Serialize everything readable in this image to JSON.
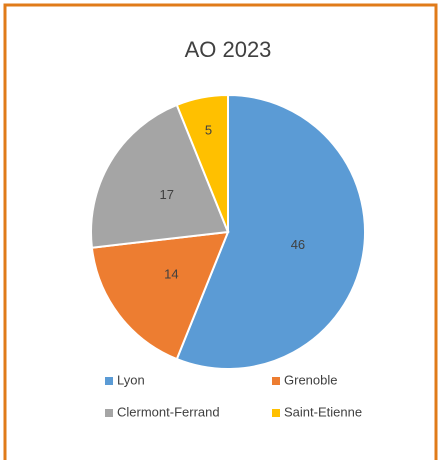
{
  "chart_data": {
    "type": "pie",
    "title": "AO 2023",
    "categories": [
      "Lyon",
      "Grenoble",
      "Clermont-Ferrand",
      "Saint-Etienne"
    ],
    "values": [
      46,
      14,
      17,
      5
    ],
    "colors": [
      "#5b9bd5",
      "#ed7d31",
      "#a5a5a5",
      "#ffc000"
    ],
    "legend": "bottom"
  }
}
